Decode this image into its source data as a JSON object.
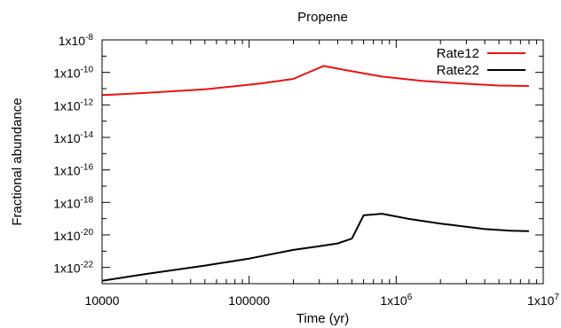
{
  "chart_data": {
    "type": "line",
    "title": "Propene",
    "xlabel": "Time (yr)",
    "ylabel": "Fractional abundance",
    "x_scale": "log",
    "y_scale": "log",
    "xlim": [
      10000,
      10000000
    ],
    "ylim": [
      1e-23,
      1e-08
    ],
    "grid": false,
    "legend_position": "top-right",
    "x_ticks": [
      {
        "value": 10000,
        "label": "10000"
      },
      {
        "value": 100000,
        "label": "100000"
      },
      {
        "value": 1000000,
        "label": "1x10^6"
      },
      {
        "value": 10000000,
        "label": "1x10^7"
      }
    ],
    "y_ticks": [
      {
        "value": 1e-22,
        "label": "1x10^-22"
      },
      {
        "value": 1e-20,
        "label": "1x10^-20"
      },
      {
        "value": 1e-18,
        "label": "1x10^-18"
      },
      {
        "value": 1e-16,
        "label": "1x10^-16"
      },
      {
        "value": 1e-14,
        "label": "1x10^-14"
      },
      {
        "value": 1e-12,
        "label": "1x10^-12"
      },
      {
        "value": 1e-10,
        "label": "1x10^-10"
      },
      {
        "value": 1e-08,
        "label": "1x10^-8"
      }
    ],
    "series": [
      {
        "name": "Rate12",
        "color": "#ee1111",
        "x": [
          10000,
          20000,
          50000,
          80000,
          120000,
          200000,
          320000,
          450000,
          800000,
          1500000,
          3000000,
          5000000,
          8000000
        ],
        "y": [
          4e-12,
          5.5e-12,
          9e-12,
          1.4e-11,
          2.1e-11,
          4e-11,
          2.5e-10,
          1.4e-10,
          5.5e-11,
          3e-11,
          2e-11,
          1.55e-11,
          1.45e-11
        ]
      },
      {
        "name": "Rate22",
        "color": "#000000",
        "x": [
          10000,
          20000,
          50000,
          100000,
          200000,
          300000,
          400000,
          500000,
          600000,
          800000,
          1200000,
          2000000,
          4000000,
          6000000,
          8000000
        ],
        "y": [
          1.5e-23,
          4e-23,
          1.3e-22,
          3.5e-22,
          1.2e-21,
          2e-21,
          3e-21,
          6e-21,
          1.6e-19,
          2e-19,
          1e-19,
          5e-20,
          2.3e-20,
          1.8e-20,
          1.7e-20
        ]
      }
    ]
  }
}
